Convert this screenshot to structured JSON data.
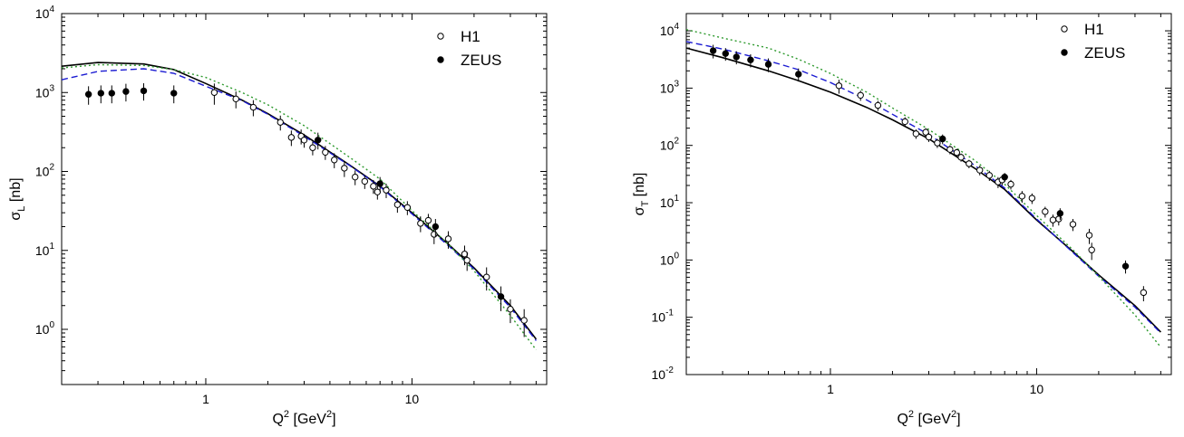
{
  "chart_data": [
    {
      "type": "scatter",
      "xlabel": "Q",
      "xlabel_sup": "2",
      "xlabel_unit_open": " [GeV",
      "xlabel_unit_sup": "2",
      "xlabel_unit_close": "]",
      "ylabel": "σ",
      "ylabel_sub": "L",
      "ylabel_unit": " [nb]",
      "x_scale": "log",
      "y_scale": "log",
      "xlim": [
        0.2,
        45
      ],
      "ylim": [
        0.2,
        10000
      ],
      "x_tick_labels": [
        {
          "value": 1,
          "label": "1"
        },
        {
          "value": 10,
          "label": "10"
        }
      ],
      "y_tick_labels": [
        {
          "value": 1,
          "base": "10",
          "exp": "0"
        },
        {
          "value": 10,
          "base": "10",
          "exp": "1"
        },
        {
          "value": 100,
          "base": "10",
          "exp": "2"
        },
        {
          "value": 1000,
          "base": "10",
          "exp": "3"
        },
        {
          "value": 10000,
          "base": "10",
          "exp": "4"
        }
      ],
      "legend": {
        "position": "top-right",
        "entries": [
          "H1",
          "ZEUS"
        ]
      },
      "series": [
        {
          "name": "H1",
          "marker": "open-circle",
          "points": [
            {
              "x": 1.1,
              "y": 1000,
              "err": 300
            },
            {
              "x": 1.4,
              "y": 830,
              "err": 200
            },
            {
              "x": 1.7,
              "y": 650,
              "err": 150
            },
            {
              "x": 2.3,
              "y": 420,
              "err": 90
            },
            {
              "x": 2.6,
              "y": 270,
              "err": 60
            },
            {
              "x": 2.9,
              "y": 280,
              "err": 60
            },
            {
              "x": 3.0,
              "y": 250,
              "err": 50
            },
            {
              "x": 3.3,
              "y": 200,
              "err": 40
            },
            {
              "x": 3.8,
              "y": 175,
              "err": 35
            },
            {
              "x": 4.2,
              "y": 140,
              "err": 30
            },
            {
              "x": 4.7,
              "y": 110,
              "err": 25
            },
            {
              "x": 5.3,
              "y": 85,
              "err": 18
            },
            {
              "x": 5.9,
              "y": 75,
              "err": 15
            },
            {
              "x": 6.5,
              "y": 65,
              "err": 13
            },
            {
              "x": 6.8,
              "y": 55,
              "err": 11
            },
            {
              "x": 7.5,
              "y": 58,
              "err": 12
            },
            {
              "x": 8.5,
              "y": 38,
              "err": 8
            },
            {
              "x": 9.5,
              "y": 35,
              "err": 7
            },
            {
              "x": 11.0,
              "y": 22,
              "err": 5
            },
            {
              "x": 12.0,
              "y": 24,
              "err": 5
            },
            {
              "x": 12.8,
              "y": 16,
              "err": 4
            },
            {
              "x": 15.0,
              "y": 14,
              "err": 3.5
            },
            {
              "x": 18.0,
              "y": 9,
              "err": 2.5
            },
            {
              "x": 18.5,
              "y": 7.5,
              "err": 2
            },
            {
              "x": 23.0,
              "y": 4.6,
              "err": 1.5
            },
            {
              "x": 30.0,
              "y": 1.8,
              "err": 0.6
            },
            {
              "x": 35.0,
              "y": 1.3,
              "err": 0.5
            }
          ]
        },
        {
          "name": "ZEUS",
          "marker": "filled-circle",
          "points": [
            {
              "x": 0.27,
              "y": 950,
              "err": 250
            },
            {
              "x": 0.31,
              "y": 980,
              "err": 250
            },
            {
              "x": 0.35,
              "y": 980,
              "err": 250
            },
            {
              "x": 0.41,
              "y": 1030,
              "err": 260
            },
            {
              "x": 0.5,
              "y": 1050,
              "err": 260
            },
            {
              "x": 0.7,
              "y": 980,
              "err": 250
            },
            {
              "x": 3.5,
              "y": 250,
              "err": 60
            },
            {
              "x": 7.0,
              "y": 70,
              "err": 15
            },
            {
              "x": 13.0,
              "y": 20,
              "err": 5
            },
            {
              "x": 27.0,
              "y": 2.6,
              "err": 0.9
            }
          ]
        }
      ],
      "curves": [
        {
          "style": "solid",
          "color": "#000000",
          "points": [
            [
              0.2,
              2150
            ],
            [
              0.3,
              2400
            ],
            [
              0.5,
              2300
            ],
            [
              0.7,
              1950
            ],
            [
              1,
              1300
            ],
            [
              1.5,
              800
            ],
            [
              2,
              540
            ],
            [
              3,
              290
            ],
            [
              5,
              120
            ],
            [
              7,
              65
            ],
            [
              10,
              30
            ],
            [
              15,
              12
            ],
            [
              20,
              6
            ],
            [
              30,
              2
            ],
            [
              40,
              0.75
            ]
          ]
        },
        {
          "style": "dashed",
          "color": "#1a1ad2",
          "points": [
            [
              0.2,
              1450
            ],
            [
              0.3,
              1850
            ],
            [
              0.5,
              2000
            ],
            [
              0.7,
              1750
            ],
            [
              1,
              1200
            ],
            [
              1.5,
              790
            ],
            [
              2,
              530
            ],
            [
              3,
              280
            ],
            [
              5,
              118
            ],
            [
              7,
              64
            ],
            [
              10,
              29
            ],
            [
              15,
              11.5
            ],
            [
              20,
              5.8
            ],
            [
              30,
              1.9
            ],
            [
              40,
              0.72
            ]
          ]
        },
        {
          "style": "dotted",
          "color": "#2e9a2e",
          "points": [
            [
              0.2,
              2050
            ],
            [
              0.3,
              2250
            ],
            [
              0.5,
              2200
            ],
            [
              0.7,
              1950
            ],
            [
              1,
              1550
            ],
            [
              1.5,
              1000
            ],
            [
              2,
              700
            ],
            [
              3,
              380
            ],
            [
              5,
              150
            ],
            [
              7,
              80
            ],
            [
              10,
              32
            ],
            [
              15,
              12
            ],
            [
              20,
              5.5
            ],
            [
              30,
              1.5
            ],
            [
              40,
              0.55
            ]
          ]
        }
      ]
    },
    {
      "type": "scatter",
      "xlabel": "Q",
      "xlabel_sup": "2",
      "xlabel_unit_open": " [GeV",
      "xlabel_unit_sup": "2",
      "xlabel_unit_close": "]",
      "ylabel": "σ",
      "ylabel_sub": "T",
      "ylabel_unit": " [nb]",
      "x_scale": "log",
      "y_scale": "log",
      "xlim": [
        0.2,
        45
      ],
      "ylim": [
        0.01,
        20000
      ],
      "x_tick_labels": [
        {
          "value": 1,
          "label": "1"
        },
        {
          "value": 10,
          "label": "10"
        }
      ],
      "y_tick_labels": [
        {
          "value": 0.01,
          "base": "10",
          "exp": "-2"
        },
        {
          "value": 0.1,
          "base": "10",
          "exp": "-1"
        },
        {
          "value": 1,
          "base": "10",
          "exp": "0"
        },
        {
          "value": 10,
          "base": "10",
          "exp": "1"
        },
        {
          "value": 100,
          "base": "10",
          "exp": "2"
        },
        {
          "value": 1000,
          "base": "10",
          "exp": "3"
        },
        {
          "value": 10000,
          "base": "10",
          "exp": "4"
        }
      ],
      "legend": {
        "position": "top-right",
        "entries": [
          "H1",
          "ZEUS"
        ]
      },
      "series": [
        {
          "name": "H1",
          "marker": "open-circle",
          "points": [
            {
              "x": 1.1,
              "y": 1100,
              "err": 300
            },
            {
              "x": 1.4,
              "y": 750,
              "err": 150
            },
            {
              "x": 1.7,
              "y": 500,
              "err": 100
            },
            {
              "x": 2.3,
              "y": 260,
              "err": 50
            },
            {
              "x": 2.6,
              "y": 160,
              "err": 30
            },
            {
              "x": 2.9,
              "y": 170,
              "err": 30
            },
            {
              "x": 3.0,
              "y": 140,
              "err": 25
            },
            {
              "x": 3.3,
              "y": 110,
              "err": 20
            },
            {
              "x": 3.8,
              "y": 85,
              "err": 15
            },
            {
              "x": 4.1,
              "y": 75,
              "err": 12
            },
            {
              "x": 4.3,
              "y": 62,
              "err": 10
            },
            {
              "x": 4.7,
              "y": 48,
              "err": 8
            },
            {
              "x": 5.3,
              "y": 37,
              "err": 7
            },
            {
              "x": 5.9,
              "y": 30,
              "err": 6
            },
            {
              "x": 6.5,
              "y": 23,
              "err": 5
            },
            {
              "x": 6.8,
              "y": 25,
              "err": 5
            },
            {
              "x": 7.5,
              "y": 21,
              "err": 4
            },
            {
              "x": 8.5,
              "y": 13,
              "err": 3
            },
            {
              "x": 9.5,
              "y": 12,
              "err": 2.5
            },
            {
              "x": 11.0,
              "y": 7,
              "err": 1.5
            },
            {
              "x": 12.0,
              "y": 5,
              "err": 1.2
            },
            {
              "x": 12.8,
              "y": 5.2,
              "err": 1.2
            },
            {
              "x": 15.0,
              "y": 4.2,
              "err": 1
            },
            {
              "x": 18.0,
              "y": 2.7,
              "err": 0.8
            },
            {
              "x": 18.5,
              "y": 1.5,
              "err": 0.5
            },
            {
              "x": 33.0,
              "y": 0.27,
              "err": 0.08
            }
          ]
        },
        {
          "name": "ZEUS",
          "marker": "filled-circle",
          "points": [
            {
              "x": 0.27,
              "y": 4500,
              "err": 1200
            },
            {
              "x": 0.31,
              "y": 4000,
              "err": 1000
            },
            {
              "x": 0.35,
              "y": 3500,
              "err": 900
            },
            {
              "x": 0.41,
              "y": 3100,
              "err": 800
            },
            {
              "x": 0.5,
              "y": 2600,
              "err": 700
            },
            {
              "x": 0.7,
              "y": 1750,
              "err": 450
            },
            {
              "x": 3.5,
              "y": 130,
              "err": 25
            },
            {
              "x": 7.0,
              "y": 28,
              "err": 5
            },
            {
              "x": 13.0,
              "y": 6.5,
              "err": 1.5
            },
            {
              "x": 27.0,
              "y": 0.78,
              "err": 0.2
            }
          ]
        }
      ],
      "curves": [
        {
          "style": "solid",
          "color": "#000000",
          "points": [
            [
              0.2,
              5000
            ],
            [
              0.3,
              3400
            ],
            [
              0.5,
              2000
            ],
            [
              0.7,
              1350
            ],
            [
              1,
              850
            ],
            [
              1.5,
              460
            ],
            [
              2,
              280
            ],
            [
              3,
              130
            ],
            [
              5,
              40
            ],
            [
              7,
              17
            ],
            [
              10,
              5
            ],
            [
              15,
              1.4
            ],
            [
              20,
              0.55
            ],
            [
              30,
              0.16
            ],
            [
              40,
              0.055
            ]
          ]
        },
        {
          "style": "dashed",
          "color": "#1a1ad2",
          "points": [
            [
              0.2,
              6500
            ],
            [
              0.3,
              4800
            ],
            [
              0.5,
              3000
            ],
            [
              0.7,
              2100
            ],
            [
              1,
              1250
            ],
            [
              1.5,
              620
            ],
            [
              2,
              350
            ],
            [
              3,
              155
            ],
            [
              5,
              45
            ],
            [
              7,
              18
            ],
            [
              10,
              5.2
            ],
            [
              15,
              1.35
            ],
            [
              20,
              0.52
            ],
            [
              30,
              0.15
            ],
            [
              40,
              0.053
            ]
          ]
        },
        {
          "style": "dotted",
          "color": "#2e9a2e",
          "points": [
            [
              0.2,
              10500
            ],
            [
              0.3,
              7500
            ],
            [
              0.5,
              5000
            ],
            [
              0.7,
              3200
            ],
            [
              1,
              1800
            ],
            [
              1.5,
              850
            ],
            [
              2,
              450
            ],
            [
              3,
              190
            ],
            [
              5,
              55
            ],
            [
              7,
              21
            ],
            [
              10,
              6
            ],
            [
              15,
              1.5
            ],
            [
              20,
              0.52
            ],
            [
              30,
              0.11
            ],
            [
              40,
              0.03
            ]
          ]
        }
      ]
    }
  ]
}
